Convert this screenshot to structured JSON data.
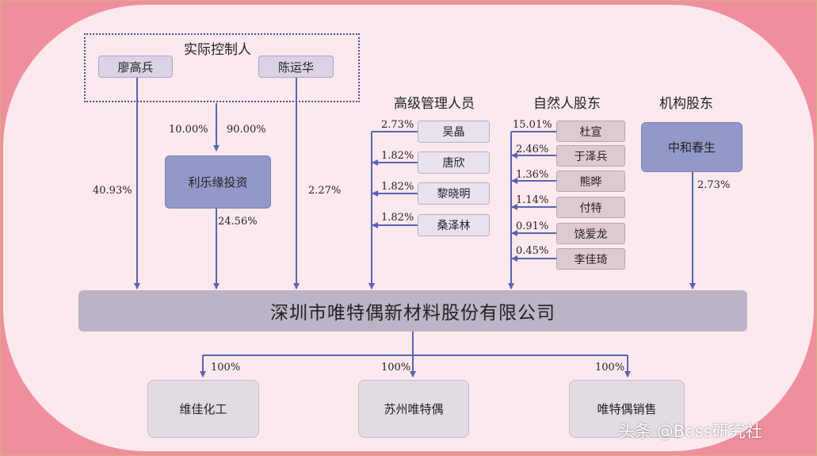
{
  "controllers": {
    "title": "实际控制人",
    "person1": "廖高兵",
    "person2": "陈运华",
    "pct_to_invest_1": "10.00%",
    "pct_to_invest_2": "90.00%",
    "pct_liao_direct": "40.93%",
    "pct_chen_direct": "2.27%"
  },
  "invest": {
    "name": "利乐缘投资",
    "pct": "24.56%"
  },
  "managers": {
    "title": "高级管理人员",
    "items": [
      {
        "name": "吴晶",
        "pct": "2.73%"
      },
      {
        "name": "唐欣",
        "pct": "1.82%"
      },
      {
        "name": "黎晓明",
        "pct": "1.82%"
      },
      {
        "name": "桑泽林",
        "pct": "1.82%"
      }
    ]
  },
  "natural": {
    "title": "自然人股东",
    "items": [
      {
        "name": "杜宣",
        "pct": "15.01%"
      },
      {
        "name": "于泽兵",
        "pct": "2.46%"
      },
      {
        "name": "熊晔",
        "pct": "1.36%"
      },
      {
        "name": "付特",
        "pct": "1.14%"
      },
      {
        "name": "饶爱龙",
        "pct": "0.91%"
      },
      {
        "name": "李佳琦",
        "pct": "0.45%"
      }
    ]
  },
  "institution": {
    "title": "机构股东",
    "name": "中和春生",
    "pct": "2.73%"
  },
  "company": {
    "name": "深圳市唯特偶新材料股份有限公司"
  },
  "subsidiaries": [
    {
      "name": "维佳化工",
      "pct": "100%"
    },
    {
      "name": "苏州唯特偶",
      "pct": "100%"
    },
    {
      "name": "唯特偶销售",
      "pct": "100%"
    }
  ],
  "watermark": "头条 @Boss研究社"
}
